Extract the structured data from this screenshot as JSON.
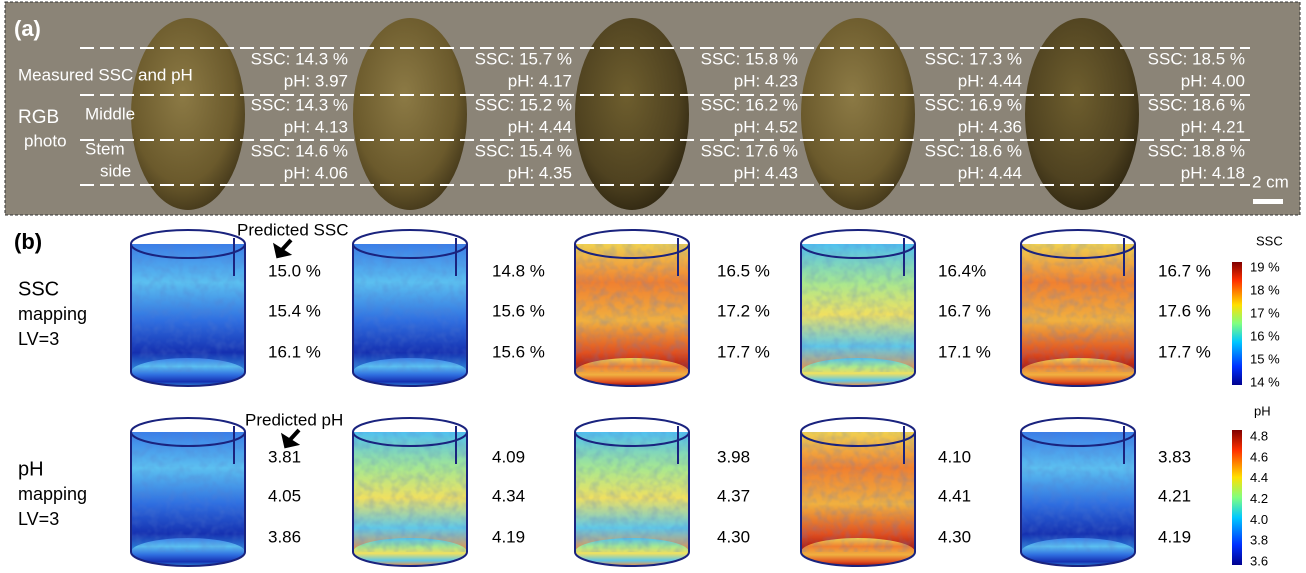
{
  "panel_a": {
    "label": "(a)",
    "row_label_measured": "Measured SSC and pH",
    "row_label_rgb": [
      "RGB",
      "photo"
    ],
    "row_label_middle": "Middle",
    "row_label_stem": [
      "Stem",
      "side"
    ],
    "scale_bar": "2 cm",
    "fruits": [
      [
        [
          "SSC: 14.3 %",
          "pH: 3.97"
        ],
        [
          "SSC: 14.3 %",
          "pH: 4.13"
        ],
        [
          "SSC: 14.6 %",
          "pH: 4.06"
        ]
      ],
      [
        [
          "SSC: 15.7 %",
          "pH: 4.17"
        ],
        [
          "SSC: 15.2 %",
          "pH: 4.44"
        ],
        [
          "SSC: 15.4 %",
          "pH: 4.35"
        ]
      ],
      [
        [
          "SSC: 15.8 %",
          "pH: 4.23"
        ],
        [
          "SSC: 16.2 %",
          "pH: 4.52"
        ],
        [
          "SSC: 17.6 %",
          "pH: 4.43"
        ]
      ],
      [
        [
          "SSC: 17.3 %",
          "pH: 4.44"
        ],
        [
          "SSC: 16.9 %",
          "pH: 4.36"
        ],
        [
          "SSC: 18.6 %",
          "pH: 4.44"
        ]
      ],
      [
        [
          "SSC: 18.5 %",
          "pH: 4.00"
        ],
        [
          "SSC: 18.6 %",
          "pH: 4.21"
        ],
        [
          "SSC: 18.8 %",
          "pH: 4.18"
        ]
      ]
    ]
  },
  "panel_b": {
    "label": "(b)",
    "ssc_row": {
      "label": [
        "SSC",
        "mapping",
        "LV=3"
      ],
      "annotation": "Predicted SSC",
      "values": [
        [
          "15.0 %",
          "15.4 %",
          "16.1 %"
        ],
        [
          "14.8 %",
          "15.6 %",
          "15.6 %"
        ],
        [
          "16.5 %",
          "17.2 %",
          "17.7 %"
        ],
        [
          "16.4%",
          "16.7 %",
          "17.1 %"
        ],
        [
          "16.7 %",
          "17.6 %",
          "17.7 %"
        ]
      ]
    },
    "ph_row": {
      "label": [
        "pH",
        "mapping",
        "LV=3"
      ],
      "annotation": "Predicted pH",
      "values": [
        [
          "3.81",
          "4.05",
          "3.86"
        ],
        [
          "4.09",
          "4.34",
          "4.19"
        ],
        [
          "3.98",
          "4.37",
          "4.30"
        ],
        [
          "4.10",
          "4.41",
          "4.30"
        ],
        [
          "3.83",
          "4.21",
          "4.19"
        ]
      ]
    },
    "ssc_colorbar": {
      "title": "SSC",
      "ticks": [
        "19 %",
        "18 %",
        "17 %",
        "16 %",
        "15 %",
        "14 %"
      ]
    },
    "ph_colorbar": {
      "title": "pH",
      "ticks": [
        "4.8",
        "4.6",
        "4.4",
        "4.2",
        "4.0",
        "3.8",
        "3.6"
      ]
    }
  }
}
